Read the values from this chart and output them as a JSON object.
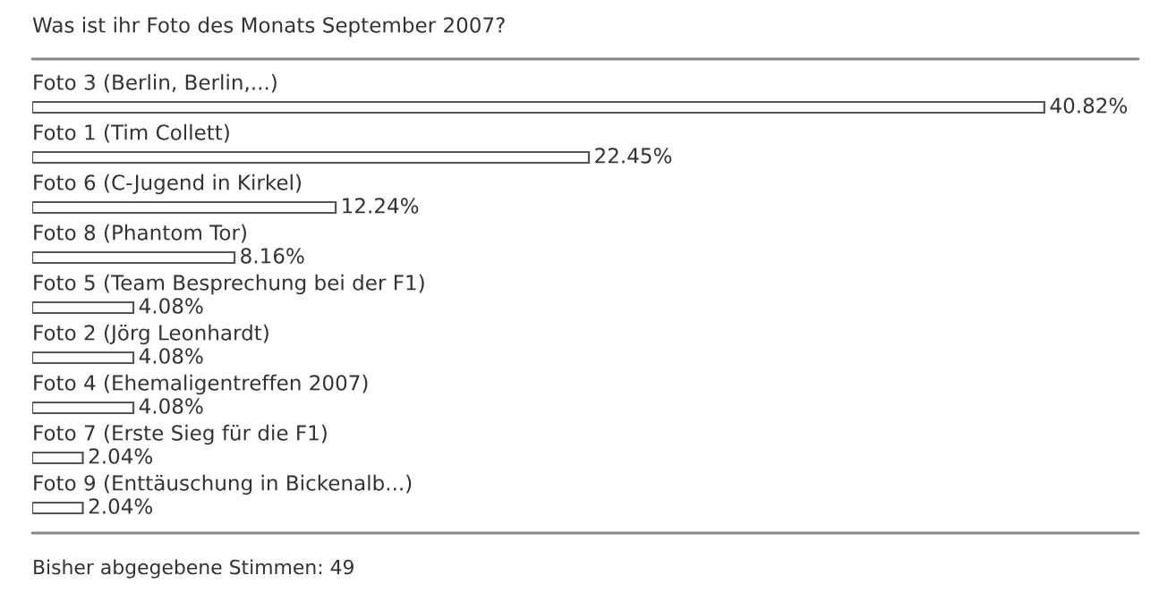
{
  "chart_data": {
    "type": "bar",
    "orientation": "horizontal",
    "title": "Was ist ihr Foto des Monats September 2007?",
    "categories": [
      "Foto 3 (Berlin, Berlin,...)",
      "Foto 1 (Tim Collett)",
      "Foto 6 (C-Jugend in Kirkel)",
      "Foto 8 (Phantom Tor)",
      "Foto 5 (Team Besprechung bei der F1)",
      "Foto 2 (Jörg Leonhardt)",
      "Foto 4 (Ehemaligentreffen 2007)",
      "Foto 7 (Erste Sieg für die F1)",
      "Foto 9 (Enttäuschung in Bickenalb...)"
    ],
    "values": [
      40.82,
      22.45,
      12.24,
      8.16,
      4.08,
      4.08,
      4.08,
      2.04,
      2.04
    ],
    "value_labels": [
      "40.82%",
      "22.45%",
      "12.24%",
      "8.16%",
      "4.08%",
      "4.08%",
      "4.08%",
      "2.04%",
      "2.04%"
    ],
    "color": "#ffffff",
    "annotations": [
      "Bisher abgegebene Stimmen: 49"
    ]
  }
}
